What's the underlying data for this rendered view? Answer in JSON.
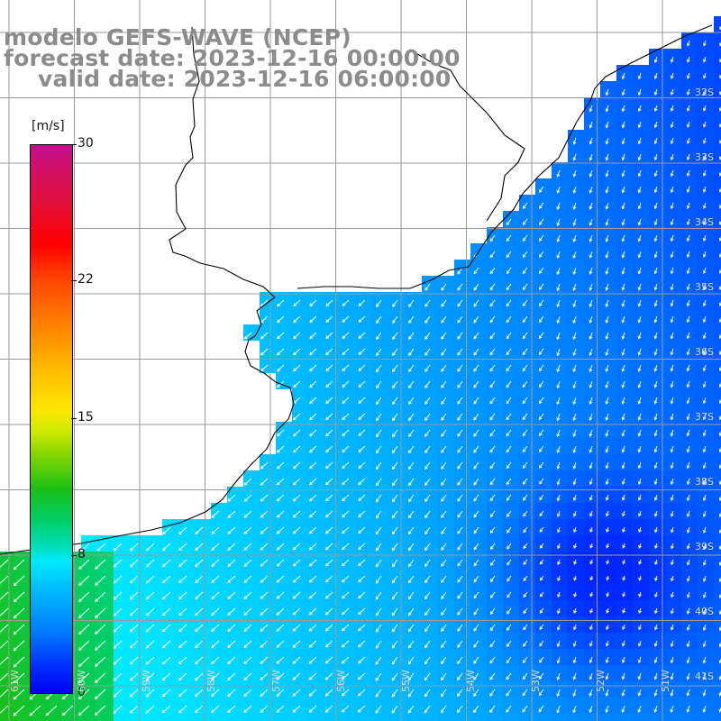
{
  "title": {
    "line1": "modelo GEFS-WAVE (NCEP)",
    "line2": "forecast date: 2023-12-16 00:00:00",
    "line3": "valid date: 2023-12-16 06:00:00"
  },
  "colorbar": {
    "unit": "[m/s]",
    "min": 0,
    "max": 30,
    "ticks": [
      {
        "value": 30,
        "label": "30"
      },
      {
        "value": 22,
        "label": "22"
      },
      {
        "value": 15,
        "label": "15"
      },
      {
        "value": 8,
        "label": "8"
      },
      {
        "value": 0,
        "label": "0"
      }
    ]
  },
  "latitude_labels": [
    "32S",
    "33S",
    "34S",
    "35S",
    "36S",
    "37S",
    "38S",
    "39S",
    "40S",
    "41S"
  ],
  "longitude_labels": [
    "61W",
    "60W",
    "59W",
    "58W",
    "57W",
    "56W",
    "55W",
    "54W",
    "53W",
    "52W",
    "51W"
  ],
  "colors": {
    "land": "#ffffff",
    "coastline": "#000000",
    "gridlines": "#9a9a9a",
    "arrows": "#ffffff",
    "title_text": "#8c8c8c"
  },
  "chart_data": {
    "type": "heatmap",
    "variable": "wind speed",
    "unit": "m/s",
    "lon_range": [
      -61.2,
      -50.4
    ],
    "lat_range": [
      -41.4,
      -30.6
    ],
    "color_range": [
      0,
      30
    ],
    "notes_visible": "wind vectors drawn as white arrows; land masked white"
  }
}
